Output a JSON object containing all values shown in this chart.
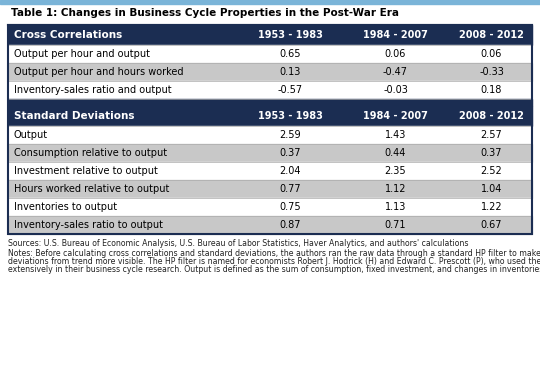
{
  "title": "Table 1: Changes in Business Cycle Properties in the Post-War Era",
  "top_bar_color": "#7ab4d8",
  "header_bg": "#1b2d52",
  "header_text_color": "#ffffff",
  "row_light": "#ffffff",
  "row_dark": "#c8c8c8",
  "sep_color": "#1b2d52",
  "outer_border_color": "#1b2d52",
  "grid_color": "#aaaaaa",
  "title_color": "#000000",
  "columns": [
    "",
    "1953 - 1983",
    "1984 - 2007",
    "2008 - 2012"
  ],
  "section1_header": "Cross Correlations",
  "section1_rows": [
    [
      "Output per hour and output",
      "0.65",
      "0.06",
      "0.06"
    ],
    [
      "Output per hour and hours worked",
      "0.13",
      "-0.47",
      "-0.33"
    ],
    [
      "Inventory-sales ratio and output",
      "-0.57",
      "-0.03",
      "0.18"
    ]
  ],
  "section2_header": "Standard Deviations",
  "section2_col1": "1953 - 1983",
  "section2_rows": [
    [
      "Output",
      "2.59",
      "1.43",
      "2.57"
    ],
    [
      "Consumption relative to output",
      "0.37",
      "0.44",
      "0.37"
    ],
    [
      "Investment relative to output",
      "2.04",
      "2.35",
      "2.52"
    ],
    [
      "Hours worked relative to output",
      "0.77",
      "1.12",
      "1.04"
    ],
    [
      "Inventories to output",
      "0.75",
      "1.13",
      "1.22"
    ],
    [
      "Inventory-sales ratio to output",
      "0.87",
      "0.71",
      "0.67"
    ]
  ],
  "sources_text": "Sources: U.S. Bureau of Economic Analysis, U.S. Bureau of Labor Statistics, Haver Analytics, and authors' calculations",
  "notes_line1": "Notes: Before calculating cross correlations and standard deviations, the authors ran the raw data through a standard HP filter to make",
  "notes_line2": "deviations from trend more visible. The HP filter is named for economists Robert J. Hodrick (H) and Edward C. Prescott (P), who used the filter",
  "notes_line3": "extensively in their business cycle research. Output is defined as the sum of consumption, fixed investment, and changes in inventories.",
  "fig_w": 5.4,
  "fig_h": 3.78,
  "dpi": 100
}
